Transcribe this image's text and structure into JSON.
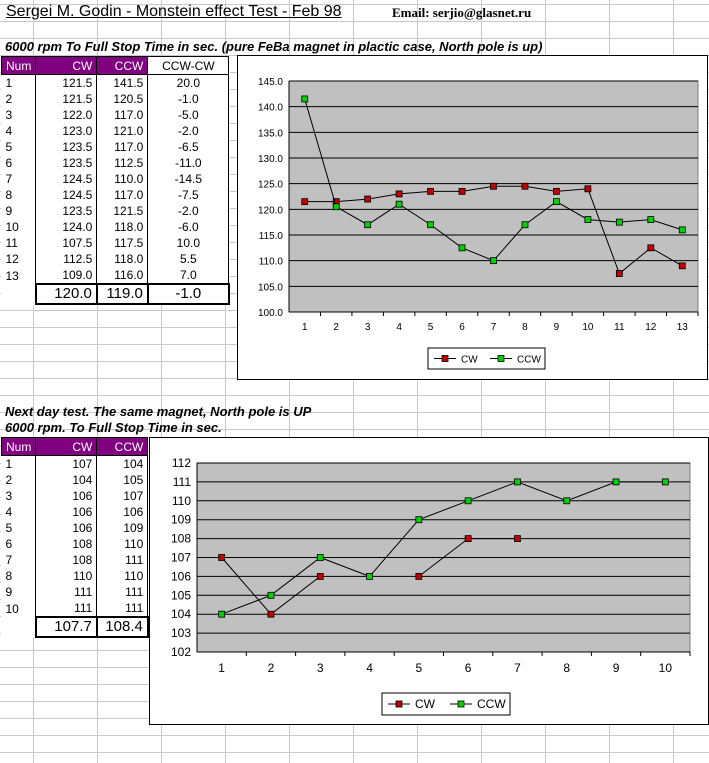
{
  "header": {
    "title": "Sergei M. Godin - Monstein effect Test - Feb 98",
    "email": "Email: serjio@glasnet.ru"
  },
  "test1": {
    "subtitle": "6000 rpm To Full Stop Time in sec. (pure FeBa magnet in plactic case, North pole is up)",
    "columns": [
      "Num",
      "CW",
      "CCW",
      "CCW-CW"
    ],
    "rows": [
      {
        "num": "1",
        "cw": "121.5",
        "ccw": "141.5",
        "diff": "20.0"
      },
      {
        "num": "2",
        "cw": "121.5",
        "ccw": "120.5",
        "diff": "-1.0"
      },
      {
        "num": "3",
        "cw": "122.0",
        "ccw": "117.0",
        "diff": "-5.0"
      },
      {
        "num": "4",
        "cw": "123.0",
        "ccw": "121.0",
        "diff": "-2.0"
      },
      {
        "num": "5",
        "cw": "123.5",
        "ccw": "117.0",
        "diff": "-6.5"
      },
      {
        "num": "6",
        "cw": "123.5",
        "ccw": "112.5",
        "diff": "-11.0"
      },
      {
        "num": "7",
        "cw": "124.5",
        "ccw": "110.0",
        "diff": "-14.5"
      },
      {
        "num": "8",
        "cw": "124.5",
        "ccw": "117.0",
        "diff": "-7.5"
      },
      {
        "num": "9",
        "cw": "123.5",
        "ccw": "121.5",
        "diff": "-2.0"
      },
      {
        "num": "10",
        "cw": "124.0",
        "ccw": "118.0",
        "diff": "-6.0"
      },
      {
        "num": "11",
        "cw": "107.5",
        "ccw": "117.5",
        "diff": "10.0"
      },
      {
        "num": "12",
        "cw": "112.5",
        "ccw": "118.0",
        "diff": "5.5"
      },
      {
        "num": "13",
        "cw": "109.0",
        "ccw": "116.0",
        "diff": "7.0"
      }
    ],
    "totals": {
      "cw": "120.0",
      "ccw": "119.0",
      "diff": "-1.0"
    }
  },
  "test2": {
    "subtitle_line1": "Next day test. The same magnet, North pole is UP",
    "subtitle_line2": "6000 rpm. To Full Stop Time in sec.",
    "columns": [
      "Num",
      "CW",
      "CCW"
    ],
    "rows": [
      {
        "num": "1",
        "cw": "107",
        "ccw": "104"
      },
      {
        "num": "2",
        "cw": "104",
        "ccw": "105"
      },
      {
        "num": "3",
        "cw": "106",
        "ccw": "107"
      },
      {
        "num": "4",
        "cw": "106",
        "ccw": "106"
      },
      {
        "num": "5",
        "cw": "106",
        "ccw": "109"
      },
      {
        "num": "6",
        "cw": "108",
        "ccw": "110"
      },
      {
        "num": "7",
        "cw": "108",
        "ccw": "111"
      },
      {
        "num": "8",
        "cw": "110",
        "ccw": "110"
      },
      {
        "num": "9",
        "cw": "111",
        "ccw": "111"
      },
      {
        "num": "10",
        "cw": "111",
        "ccw": "111"
      }
    ],
    "totals": {
      "cw": "107.7",
      "ccw": "108.4"
    }
  },
  "chart_data": [
    {
      "type": "line",
      "title": "",
      "x": [
        1,
        2,
        3,
        4,
        5,
        6,
        7,
        8,
        9,
        10,
        11,
        12,
        13
      ],
      "ylim": [
        100,
        145
      ],
      "ytick_step": 5,
      "ytick_decimals": 1,
      "grid": true,
      "legend": "bottom",
      "series": [
        {
          "name": "CW",
          "color": "#c00000",
          "values": [
            121.5,
            121.5,
            122.0,
            123.0,
            123.5,
            123.5,
            124.5,
            124.5,
            123.5,
            124.0,
            107.5,
            112.5,
            109.0
          ]
        },
        {
          "name": "CCW",
          "color": "#00d000",
          "values": [
            141.5,
            120.5,
            117.0,
            121.0,
            117.0,
            112.5,
            110.0,
            117.0,
            121.5,
            118.0,
            117.5,
            118.0,
            116.0
          ]
        }
      ]
    },
    {
      "type": "line",
      "title": "",
      "x": [
        1,
        2,
        3,
        4,
        5,
        6,
        7,
        8,
        9,
        10
      ],
      "ylim": [
        102,
        112
      ],
      "ytick_step": 1,
      "ytick_decimals": 0,
      "grid": true,
      "legend": "bottom",
      "series": [
        {
          "name": "CW",
          "color": "#c00000",
          "values": [
            107,
            104,
            106,
            null,
            106,
            108,
            108,
            null,
            null,
            null
          ]
        },
        {
          "name": "CCW",
          "color": "#00d000",
          "values": [
            104,
            105,
            107,
            106,
            109,
            110,
            111,
            110,
            111,
            111
          ]
        }
      ]
    }
  ]
}
